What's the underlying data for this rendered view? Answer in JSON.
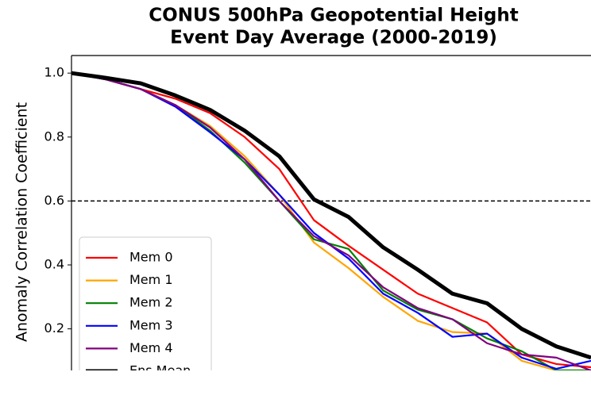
{
  "chart_data": {
    "type": "line",
    "title": [
      "CONUS 500hPa Geopotential Height",
      "Event Day Average (2000-2019)"
    ],
    "y_label": "Anomaly Correlation Coefficient",
    "categories": [
      null,
      null,
      null,
      null,
      null,
      null,
      null,
      null,
      null,
      null,
      null,
      null,
      null,
      null,
      null,
      null
    ],
    "series": [
      {
        "name": "Mem 0",
        "color": "#ff0000",
        "values": [
          1.0,
          0.98,
          0.95,
          0.92,
          0.875,
          0.8,
          0.7,
          0.54,
          0.46,
          0.385,
          0.31,
          0.265,
          0.22,
          0.12,
          0.09,
          0.08
        ]
      },
      {
        "name": "Mem 1",
        "color": "#ffa500",
        "values": [
          1.0,
          0.98,
          0.95,
          0.9,
          0.835,
          0.74,
          0.62,
          0.47,
          0.39,
          0.3,
          0.225,
          0.19,
          0.185,
          0.1,
          0.07,
          0.07
        ]
      },
      {
        "name": "Mem 2",
        "color": "#008000",
        "values": [
          1.0,
          0.98,
          0.95,
          0.9,
          0.82,
          0.72,
          0.6,
          0.48,
          0.45,
          0.32,
          0.26,
          0.23,
          0.17,
          0.13,
          0.07,
          0.07
        ]
      },
      {
        "name": "Mem 3",
        "color": "#0000ff",
        "values": [
          1.0,
          0.98,
          0.95,
          0.895,
          0.815,
          0.73,
          0.62,
          0.5,
          0.42,
          0.31,
          0.25,
          0.175,
          0.185,
          0.11,
          0.075,
          0.1
        ]
      },
      {
        "name": "Mem 4",
        "color": "#800080",
        "values": [
          1.0,
          0.98,
          0.95,
          0.9,
          0.83,
          0.73,
          0.6,
          0.49,
          0.43,
          0.33,
          0.265,
          0.23,
          0.155,
          0.12,
          0.11,
          0.07
        ]
      },
      {
        "name": "Ens Mean",
        "color": "#000000",
        "values": [
          1.0,
          0.985,
          0.968,
          0.93,
          0.885,
          0.82,
          0.74,
          0.605,
          0.55,
          0.455,
          0.385,
          0.31,
          0.28,
          0.2,
          0.145,
          0.11
        ]
      }
    ],
    "hline": 0.6,
    "ylim": [
      0.07,
      1.055
    ],
    "yticks": [
      0.2,
      0.4,
      0.6,
      0.8,
      {
        "value": 1,
        "label": "1.0"
      }
    ],
    "legend": "lower left"
  }
}
